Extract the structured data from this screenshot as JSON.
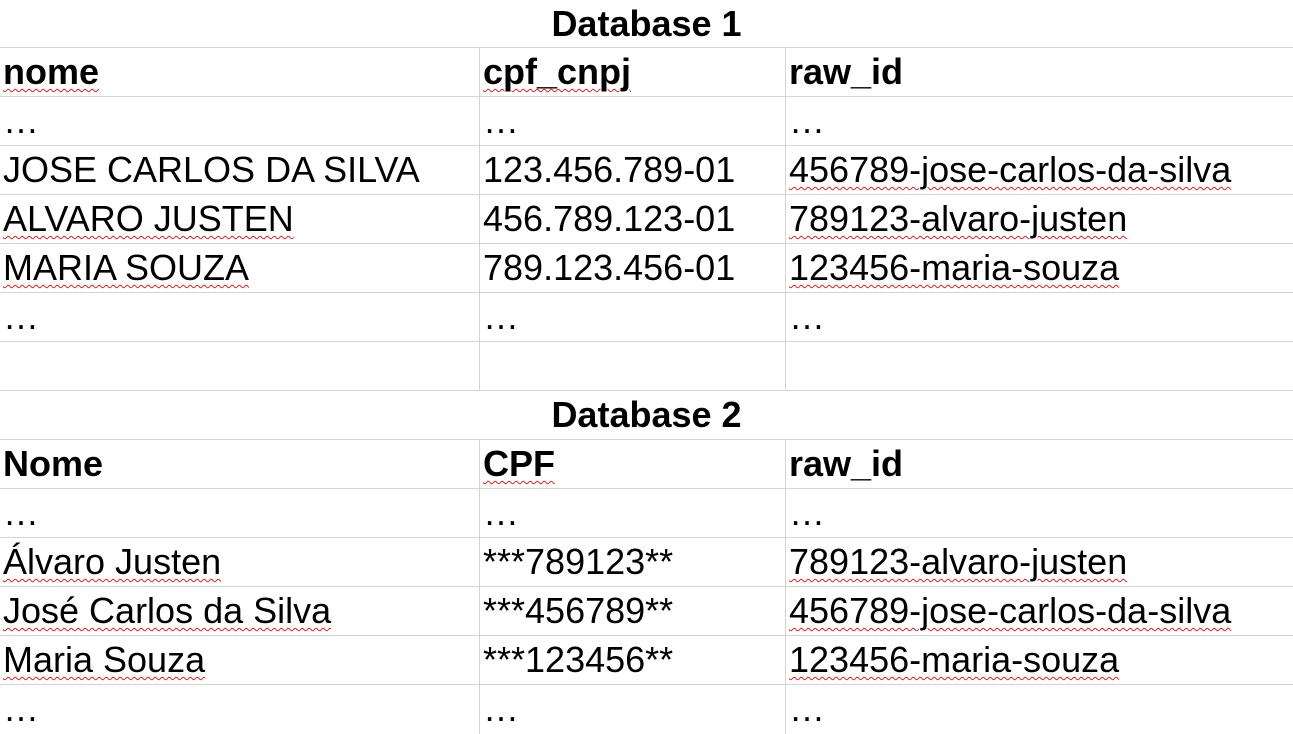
{
  "db1": {
    "title": "Database 1",
    "headers": [
      "nome",
      "cpf_cnpj",
      "raw_id"
    ],
    "rows": [
      [
        "…",
        "…",
        "…"
      ],
      [
        "JOSE CARLOS DA SILVA",
        "123.456.789-01",
        "456789-jose-carlos-da-silva"
      ],
      [
        "ALVARO JUSTEN",
        "456.789.123-01",
        "789123-alvaro-justen"
      ],
      [
        "MARIA SOUZA",
        "789.123.456-01",
        "123456-maria-souza"
      ],
      [
        "…",
        "…",
        "…"
      ],
      [
        "",
        "",
        ""
      ]
    ]
  },
  "db2": {
    "title": "Database 2",
    "headers": [
      "Nome",
      "CPF",
      "raw_id"
    ],
    "rows": [
      [
        "…",
        "…",
        "…"
      ],
      [
        "Álvaro Justen",
        "***789123**",
        "789123-alvaro-justen"
      ],
      [
        "José Carlos da Silva",
        "***456789**",
        "456789-jose-carlos-da-silva"
      ],
      [
        "Maria Souza",
        "***123456**",
        "123456-maria-souza"
      ],
      [
        "…",
        "…",
        "…"
      ]
    ]
  },
  "colors": {
    "gridline": "#d4d4d4",
    "spellcheck": "#e0201c",
    "text": "#000000",
    "background": "#ffffff"
  }
}
